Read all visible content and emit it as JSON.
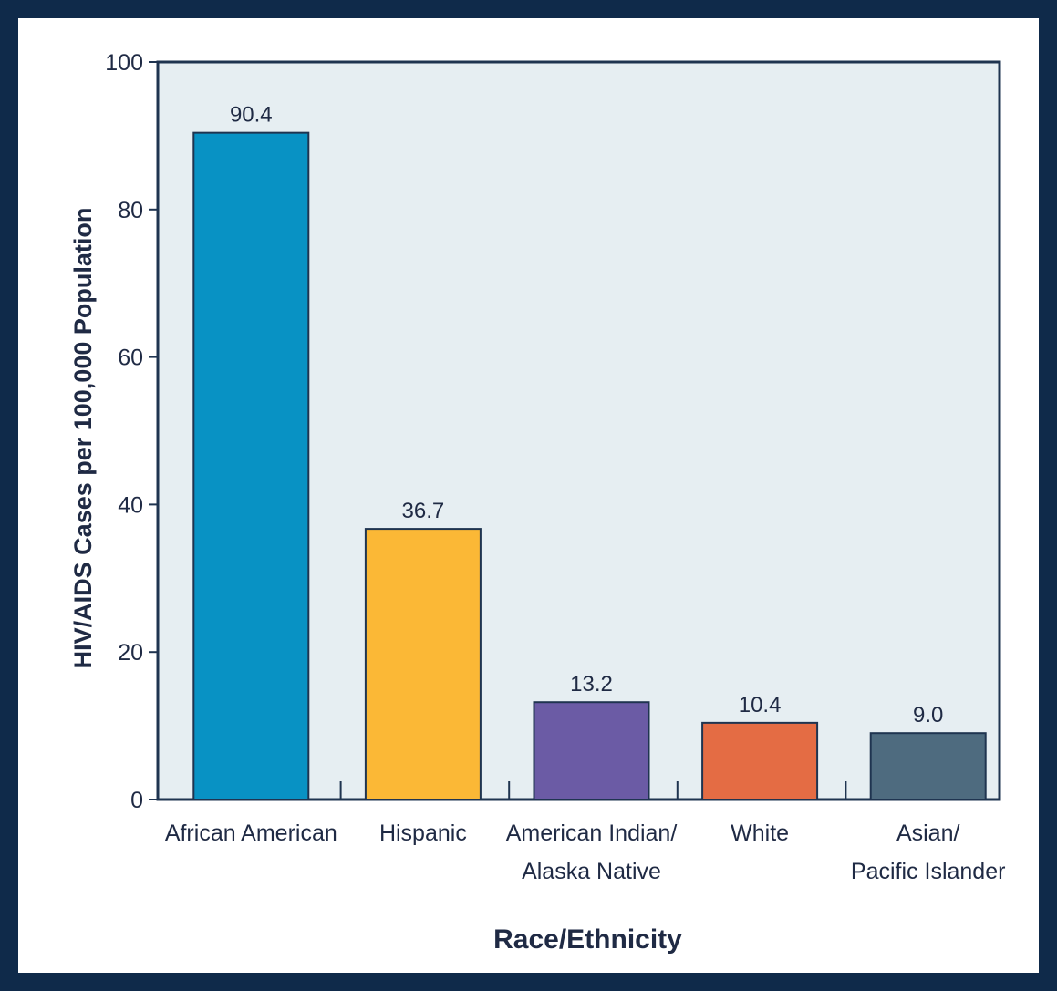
{
  "chart_data": {
    "type": "bar",
    "categories": [
      [
        "African American"
      ],
      [
        "Hispanic"
      ],
      [
        "American Indian/",
        "Alaska Native"
      ],
      [
        "White"
      ],
      [
        "Asian/",
        "Pacific Islander"
      ]
    ],
    "values": [
      90.4,
      36.7,
      13.2,
      10.4,
      9.0
    ],
    "value_labels": [
      "90.4",
      "36.7",
      "13.2",
      "10.4",
      "9.0"
    ],
    "colors": [
      "#0892c4",
      "#fbb836",
      "#6b5ba5",
      "#e46c44",
      "#4e6b7f"
    ],
    "xlabel": "Race/Ethnicity",
    "ylabel": "HIV/AIDS Cases per 100,000 Population",
    "ylim": [
      0,
      100
    ],
    "yticks": [
      0,
      20,
      40,
      60,
      80,
      100
    ],
    "plot_background": "#e6eef2",
    "grid": false,
    "legend": "none"
  }
}
